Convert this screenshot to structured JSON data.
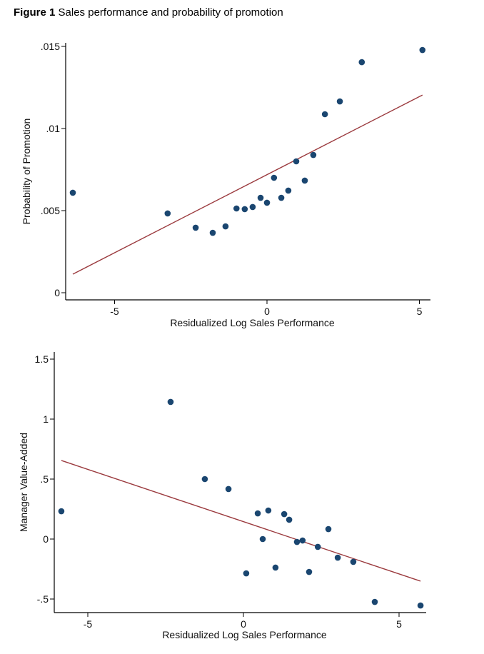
{
  "figure": {
    "label": "Figure 1",
    "caption": "Sales performance and probability of promotion"
  },
  "chart_data": [
    {
      "type": "scatter",
      "title": "",
      "xlabel": "Residualized Log Sales Performance",
      "ylabel": "Probability of Promotion",
      "xlim": [
        -6.6,
        5.3
      ],
      "ylim": [
        -0.0004,
        0.0155
      ],
      "xticks": [
        -5,
        0,
        5
      ],
      "xtick_labels": [
        "-5",
        "0",
        "5"
      ],
      "yticks": [
        0,
        0.005,
        0.01,
        0.015
      ],
      "ytick_labels": [
        "0",
        ".005",
        ".01",
        ".015"
      ],
      "grid": false,
      "legend": "none",
      "marker_color": "#1a4670",
      "line_color": "#9b3a3e",
      "points": [
        {
          "x": -6.37,
          "y": 0.00609
        },
        {
          "x": -3.26,
          "y": 0.00483
        },
        {
          "x": -2.34,
          "y": 0.00396
        },
        {
          "x": -1.78,
          "y": 0.00365
        },
        {
          "x": -1.36,
          "y": 0.00404
        },
        {
          "x": -1.0,
          "y": 0.00513
        },
        {
          "x": -0.73,
          "y": 0.00509
        },
        {
          "x": -0.47,
          "y": 0.00522
        },
        {
          "x": -0.21,
          "y": 0.00578
        },
        {
          "x": 0.0,
          "y": 0.00548
        },
        {
          "x": 0.23,
          "y": 0.007
        },
        {
          "x": 0.47,
          "y": 0.00578
        },
        {
          "x": 0.7,
          "y": 0.00622
        },
        {
          "x": 0.96,
          "y": 0.008
        },
        {
          "x": 1.24,
          "y": 0.00683
        },
        {
          "x": 1.52,
          "y": 0.00839
        },
        {
          "x": 1.9,
          "y": 0.01087
        },
        {
          "x": 2.39,
          "y": 0.01165
        },
        {
          "x": 3.11,
          "y": 0.01404
        },
        {
          "x": 5.1,
          "y": 0.01478
        }
      ],
      "fit_line": {
        "x": [
          -6.37,
          5.1
        ],
        "y": [
          0.00113,
          0.01204
        ]
      }
    },
    {
      "type": "scatter",
      "title": "",
      "xlabel": "Residualized Log Sales Performance",
      "ylabel": "Manager Value-Added",
      "xlim": [
        -6.1,
        5.9
      ],
      "ylim": [
        -0.62,
        1.55
      ],
      "xticks": [
        -5,
        0,
        5
      ],
      "xtick_labels": [
        "-5",
        "0",
        "5"
      ],
      "yticks": [
        -0.5,
        0,
        0.5,
        1,
        1.5
      ],
      "ytick_labels": [
        "-.5",
        "0",
        ".5",
        "1",
        "1.5"
      ],
      "grid": false,
      "legend": "none",
      "marker_color": "#1a4670",
      "line_color": "#9b3a3e",
      "points": [
        {
          "x": -5.85,
          "y": 0.232
        },
        {
          "x": -2.34,
          "y": 1.143
        },
        {
          "x": -1.24,
          "y": 0.5
        },
        {
          "x": -0.48,
          "y": 0.417
        },
        {
          "x": 0.09,
          "y": -0.286
        },
        {
          "x": 0.46,
          "y": 0.214
        },
        {
          "x": 0.62,
          "y": 0.0
        },
        {
          "x": 0.8,
          "y": 0.238
        },
        {
          "x": 1.03,
          "y": -0.238
        },
        {
          "x": 1.31,
          "y": 0.208
        },
        {
          "x": 1.47,
          "y": 0.161
        },
        {
          "x": 1.72,
          "y": -0.024
        },
        {
          "x": 1.9,
          "y": -0.012
        },
        {
          "x": 2.11,
          "y": -0.274
        },
        {
          "x": 2.39,
          "y": -0.065
        },
        {
          "x": 2.73,
          "y": 0.083
        },
        {
          "x": 3.03,
          "y": -0.155
        },
        {
          "x": 3.53,
          "y": -0.19
        },
        {
          "x": 4.22,
          "y": -0.524
        },
        {
          "x": 5.69,
          "y": -0.554
        }
      ],
      "fit_line": {
        "x": [
          -5.85,
          5.69
        ],
        "y": [
          0.655,
          -0.351
        ]
      }
    }
  ]
}
